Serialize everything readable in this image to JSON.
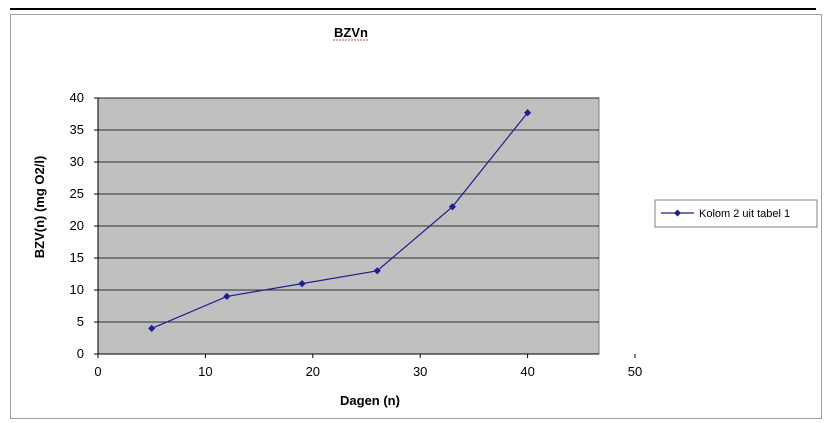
{
  "chart_data": {
    "type": "line",
    "title": "BZVn",
    "xlabel": "Dagen  (n)",
    "ylabel": "BZV(n) (mg O2/l)",
    "xlim": [
      0,
      50
    ],
    "ylim": [
      0,
      40
    ],
    "x_ticks": [
      0,
      10,
      20,
      30,
      40,
      50
    ],
    "y_ticks": [
      0,
      5,
      10,
      15,
      20,
      25,
      30,
      35,
      40
    ],
    "grid": "horizontal",
    "legend_position": "right",
    "plot_background": "#c0c0c0",
    "series": [
      {
        "name": "Kolom  2 uit tabel  1",
        "color": "#1f1f8f",
        "marker": "diamond",
        "x": [
          5,
          12,
          19,
          26,
          33,
          40
        ],
        "y": [
          4,
          9,
          11,
          13,
          23,
          37.7
        ]
      }
    ]
  }
}
